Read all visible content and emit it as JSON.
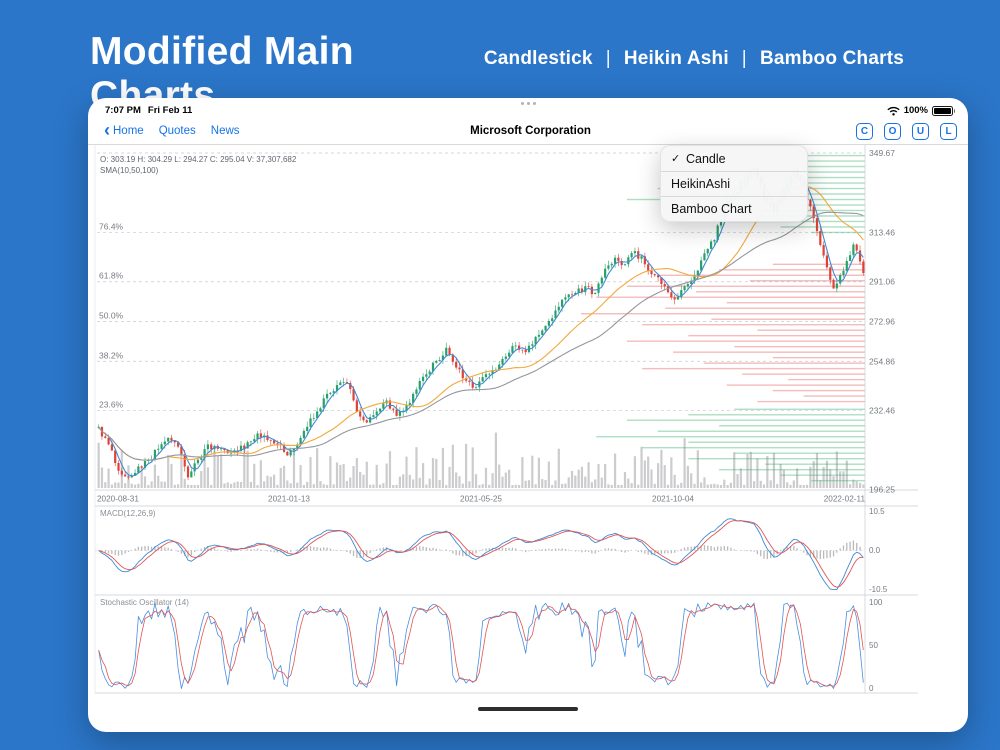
{
  "header": {
    "title": "Modified Main Charts",
    "chart_types": [
      "Candlestick",
      "Heikin Ashi",
      "Bamboo Charts"
    ],
    "divider": "|"
  },
  "status_bar": {
    "time": "7:07 PM",
    "date": "Fri Feb 11",
    "battery_pct": "100%"
  },
  "nav_bar": {
    "back_chevron": "‹",
    "back_label": "Home",
    "links": [
      "Quotes",
      "News"
    ],
    "title": "Microsoft Corporation",
    "tool_buttons": [
      "C",
      "O",
      "U",
      "L"
    ]
  },
  "dropdown_menu": {
    "check_glyph": "✓",
    "items": [
      {
        "label": "Candle",
        "checked": true
      },
      {
        "label": "HeikinAshi",
        "checked": false
      },
      {
        "label": "Bamboo Chart",
        "checked": false
      }
    ]
  },
  "chart_data": {
    "type": "candlestick",
    "title": "Microsoft Corporation",
    "info_line": "O: 303.19  H: 304.29  L: 294.27  C: 295.04  V: 37,307,682",
    "overlay_label": "SMA(10,50,100)",
    "y_axis": {
      "high": 349.67,
      "low": 196.25,
      "right_labels": [
        "349.67",
        "313.46",
        "291.06",
        "272.96",
        "254.86",
        "232.46",
        "196.25"
      ],
      "fib_labels": [
        {
          "pct": "76.4%",
          "price": 313.46
        },
        {
          "pct": "61.8%",
          "price": 291.06
        },
        {
          "pct": "50.0%",
          "price": 272.96
        },
        {
          "pct": "38.2%",
          "price": 254.86
        },
        {
          "pct": "23.6%",
          "price": 232.46
        }
      ]
    },
    "x_axis_dates": [
      "2020-08-31",
      "2021-01-13",
      "2021-05-25",
      "2021-10-04",
      "2022-02-11"
    ],
    "weekly_closes": [
      225,
      217,
      205,
      202,
      207,
      210,
      215,
      220,
      216,
      202,
      210,
      217,
      215,
      213,
      214,
      218,
      222,
      219,
      217,
      212,
      217,
      225,
      232,
      240,
      244,
      245,
      232,
      227,
      232,
      237,
      230,
      235,
      242,
      249,
      255,
      261,
      252,
      246,
      243,
      249,
      251,
      257,
      262,
      259,
      266,
      271,
      278,
      284,
      286,
      289,
      286,
      297,
      302,
      299,
      305,
      299,
      294,
      289,
      283,
      289,
      294,
      304,
      310,
      325,
      331,
      337,
      343,
      329,
      323,
      334,
      342,
      334,
      320,
      303,
      288,
      296,
      308,
      295
    ],
    "volume_profile": [
      [
        348.5,
        0.1,
        "g"
      ],
      [
        346,
        0.15,
        "g"
      ],
      [
        343.5,
        0.08,
        "g"
      ],
      [
        341,
        0.19,
        "g"
      ],
      [
        338.5,
        0.23,
        "g"
      ],
      [
        336,
        0.12,
        "g"
      ],
      [
        333.5,
        0.27,
        "g"
      ],
      [
        331,
        0.16,
        "g"
      ],
      [
        328.5,
        0.31,
        "g"
      ],
      [
        326,
        0.21,
        "g"
      ],
      [
        323.5,
        0.25,
        "g"
      ],
      [
        321,
        0.14,
        "g"
      ],
      [
        318.5,
        0.18,
        "g"
      ],
      [
        316,
        0.11,
        "g"
      ],
      [
        313.5,
        0.07,
        "g"
      ],
      [
        299,
        0.12,
        "r"
      ],
      [
        296.5,
        0.19,
        "r"
      ],
      [
        294,
        0.27,
        "r"
      ],
      [
        291.5,
        0.15,
        "r"
      ],
      [
        289,
        0.31,
        "r"
      ],
      [
        286.5,
        0.22,
        "r"
      ],
      [
        284,
        0.35,
        "r"
      ],
      [
        281.5,
        0.18,
        "r"
      ],
      [
        279,
        0.26,
        "r"
      ],
      [
        276.5,
        0.37,
        "r"
      ],
      [
        274,
        0.2,
        "r"
      ],
      [
        271.5,
        0.29,
        "r"
      ],
      [
        269,
        0.14,
        "r"
      ],
      [
        266.5,
        0.23,
        "r"
      ],
      [
        264,
        0.31,
        "r"
      ],
      [
        261.5,
        0.17,
        "r"
      ],
      [
        259,
        0.25,
        "r"
      ],
      [
        256.5,
        0.12,
        "r"
      ],
      [
        254,
        0.21,
        "r"
      ],
      [
        251.5,
        0.29,
        "r"
      ],
      [
        249,
        0.16,
        "r"
      ],
      [
        246.5,
        0.1,
        "r"
      ],
      [
        244,
        0.18,
        "r"
      ],
      [
        241.5,
        0.12,
        "r"
      ],
      [
        239,
        0.08,
        "r"
      ],
      [
        236.5,
        0.14,
        "r"
      ],
      [
        233,
        0.17,
        "g"
      ],
      [
        230.5,
        0.23,
        "g"
      ],
      [
        228,
        0.31,
        "g"
      ],
      [
        225.5,
        0.19,
        "g"
      ],
      [
        223,
        0.27,
        "g"
      ],
      [
        220.5,
        0.35,
        "g"
      ],
      [
        218,
        0.23,
        "g"
      ],
      [
        215.5,
        0.29,
        "g"
      ],
      [
        213,
        0.17,
        "g"
      ],
      [
        210.5,
        0.23,
        "g"
      ],
      [
        208,
        0.13,
        "g"
      ],
      [
        205.5,
        0.19,
        "g"
      ],
      [
        203,
        0.11,
        "g"
      ],
      [
        200.5,
        0.07,
        "g"
      ]
    ],
    "sub_panels": [
      {
        "name": "macd",
        "label": "MACD(12,26,9)",
        "axis_labels": [
          "10.5",
          "0.0",
          "-10.5"
        ],
        "range": [
          -10.5,
          10.5
        ]
      },
      {
        "name": "stochastic",
        "label": "Stochastic Oscillator (14)",
        "axis_labels": [
          "100",
          "50",
          "0"
        ],
        "range": [
          0,
          100
        ]
      }
    ]
  }
}
